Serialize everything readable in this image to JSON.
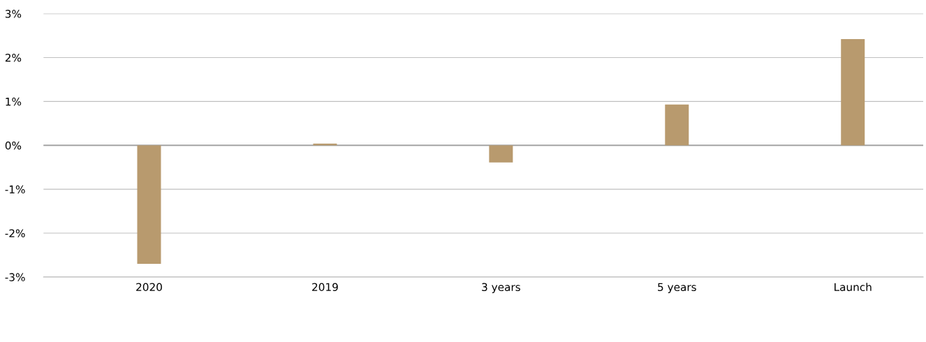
{
  "chart_data": {
    "type": "bar",
    "categories": [
      "2020",
      "2019",
      "3 years",
      "5 years",
      "Launch"
    ],
    "series": [
      {
        "color": "#b89a6e",
        "values": [
          -2.7,
          0.04,
          -0.39,
          0.93,
          2.42
        ]
      }
    ],
    "ylim": [
      -3,
      3
    ],
    "yticks": [
      {
        "value": -3,
        "label": "-3%"
      },
      {
        "value": -2,
        "label": "-2%"
      },
      {
        "value": -1,
        "label": "-1%"
      },
      {
        "value": 0,
        "label": "0%"
      },
      {
        "value": 1,
        "label": "1%"
      },
      {
        "value": 2,
        "label": "2%"
      },
      {
        "value": 3,
        "label": "3%"
      }
    ],
    "grid": "y",
    "ref_lines": [
      {
        "axis": "y",
        "value": 0,
        "color": "#a6a6a6"
      }
    ]
  }
}
